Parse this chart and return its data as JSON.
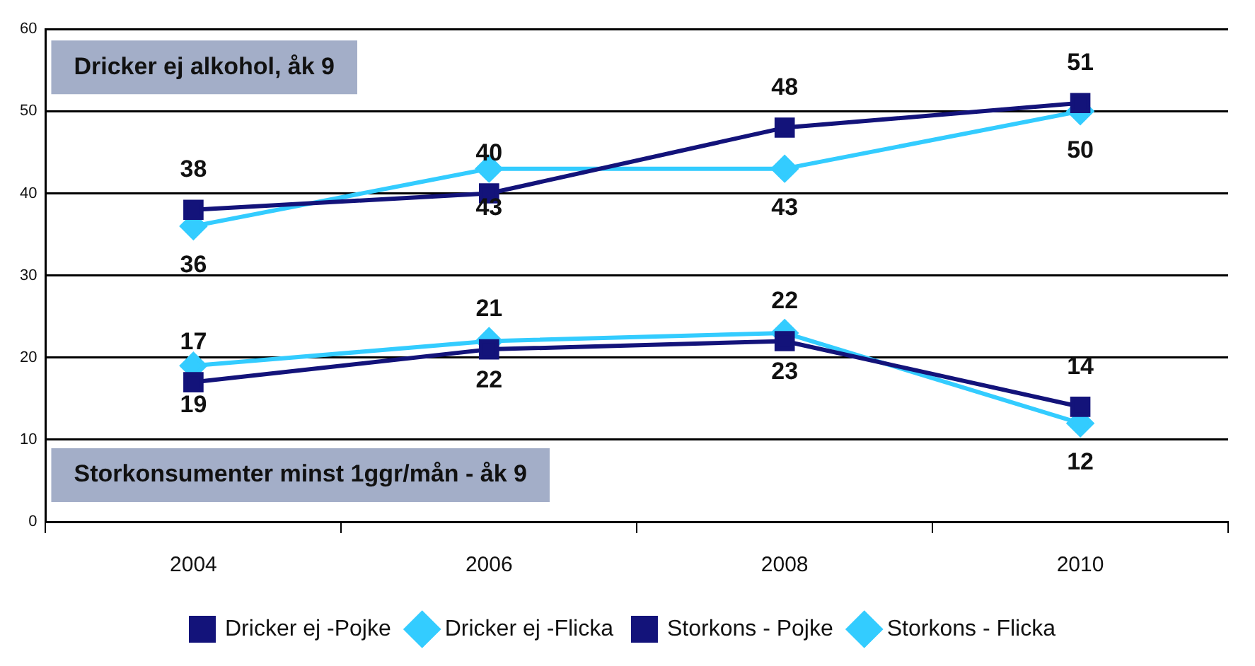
{
  "chart_data": {
    "type": "line",
    "categories": [
      "2004",
      "2006",
      "2008",
      "2010"
    ],
    "series": [
      {
        "name": "Dricker ej -Pojke",
        "color": "#13137a",
        "marker": "square",
        "values": [
          38,
          40,
          48,
          51
        ]
      },
      {
        "name": "Dricker ej -Flicka",
        "color": "#33ccff",
        "marker": "diamond",
        "values": [
          36,
          43,
          43,
          50
        ]
      },
      {
        "name": "Storkons - Pojke",
        "color": "#13137a",
        "marker": "square",
        "values": [
          17,
          21,
          22,
          14
        ]
      },
      {
        "name": "Storkons - Flicka",
        "color": "#33ccff",
        "marker": "diamond",
        "values": [
          19,
          22,
          23,
          12
        ]
      }
    ],
    "ylim": [
      0,
      60
    ],
    "yticks": [
      0,
      10,
      20,
      30,
      40,
      50,
      60
    ],
    "grid": "y",
    "legend": "bottom",
    "data_labels": true,
    "annotations": [
      "Dricker ej alkohol, åk 9",
      "Storkonsumenter minst 1ggr/mån - åk 9"
    ]
  }
}
